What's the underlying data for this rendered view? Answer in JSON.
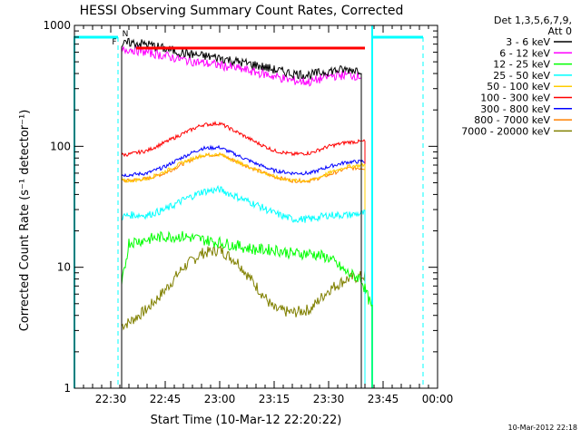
{
  "chart_data": {
    "type": "line",
    "title": "HESSI Observing Summary Count Rates, Corrected",
    "xlabel": "Start Time (10-Mar-12 22:20:22)",
    "ylabel": "Corrected Count Rate (s⁻¹ detector⁻¹)",
    "yscale": "log",
    "ylim": [
      1,
      1000
    ],
    "xlim_minutes_after_2220": [
      0,
      100
    ],
    "x_ticks": [
      {
        "t": 10,
        "label": "22:30"
      },
      {
        "t": 25,
        "label": "22:45"
      },
      {
        "t": 40,
        "label": "23:00"
      },
      {
        "t": 55,
        "label": "23:15"
      },
      {
        "t": 70,
        "label": "23:30"
      },
      {
        "t": 85,
        "label": "23:45"
      },
      {
        "t": 100,
        "label": "00:00"
      }
    ],
    "y_ticks": [
      {
        "v": 1,
        "label": "1"
      },
      {
        "v": 10,
        "label": "10"
      },
      {
        "v": 100,
        "label": "100"
      },
      {
        "v": 1000,
        "label": "1000"
      }
    ],
    "legend_header": [
      "Det 1,3,5,6,7,9,",
      "Att 0"
    ],
    "legend_placement": "right",
    "flag_labels": [
      "F",
      "N"
    ],
    "footer_stamp": "10-Mar-2012 22:18",
    "data_window_minutes": [
      13,
      80
    ],
    "series": [
      {
        "name": "3 - 6 keV",
        "color": "#000000",
        "x": [
          13,
          15,
          20,
          25,
          30,
          35,
          40,
          45,
          50,
          55,
          60,
          65,
          70,
          75,
          79
        ],
        "y": [
          680,
          720,
          700,
          640,
          590,
          560,
          540,
          500,
          470,
          430,
          400,
          390,
          420,
          430,
          430
        ]
      },
      {
        "name": "6 - 12 keV",
        "color": "#ff00ff",
        "x": [
          13,
          15,
          20,
          25,
          30,
          35,
          40,
          45,
          50,
          55,
          60,
          65,
          70,
          75,
          79
        ],
        "y": [
          620,
          640,
          600,
          560,
          520,
          490,
          470,
          440,
          410,
          380,
          350,
          340,
          380,
          390,
          380
        ]
      },
      {
        "name": "12 - 25 keV",
        "color": "#00ff00",
        "x": [
          13,
          15,
          20,
          25,
          30,
          35,
          40,
          45,
          50,
          55,
          60,
          65,
          70,
          75,
          79,
          82
        ],
        "y": [
          7,
          16,
          17,
          18,
          18,
          17,
          16,
          15,
          14,
          14,
          13,
          13,
          12,
          9,
          8,
          4.5
        ]
      },
      {
        "name": "25 - 50 keV",
        "color": "#00ffff",
        "x": [
          13,
          15,
          20,
          25,
          30,
          35,
          40,
          45,
          50,
          55,
          60,
          65,
          70,
          75,
          80
        ],
        "y": [
          26,
          27,
          27,
          30,
          36,
          42,
          44,
          38,
          33,
          28,
          25,
          25,
          27,
          27,
          28
        ]
      },
      {
        "name": "50 - 100 keV",
        "color": "#ffcc00",
        "x": [
          13,
          15,
          20,
          25,
          30,
          35,
          40,
          45,
          50,
          55,
          60,
          65,
          70,
          75,
          80
        ],
        "y": [
          52,
          52,
          54,
          62,
          74,
          84,
          86,
          74,
          64,
          56,
          52,
          52,
          60,
          68,
          70
        ]
      },
      {
        "name": "100 - 300 keV",
        "color": "#ff0000",
        "x": [
          13,
          15,
          20,
          25,
          30,
          35,
          40,
          45,
          50,
          55,
          60,
          65,
          70,
          75,
          80
        ],
        "y": [
          85,
          86,
          92,
          108,
          128,
          150,
          155,
          130,
          108,
          92,
          86,
          88,
          100,
          108,
          110
        ]
      },
      {
        "name": "300 - 800 keV",
        "color": "#0000ff",
        "x": [
          13,
          15,
          20,
          25,
          30,
          35,
          40,
          45,
          50,
          55,
          60,
          65,
          70,
          75,
          80
        ],
        "y": [
          58,
          58,
          60,
          68,
          82,
          96,
          98,
          84,
          72,
          63,
          60,
          60,
          68,
          74,
          75
        ]
      },
      {
        "name": "800 - 7000 keV",
        "color": "#ff8000",
        "x": [
          13,
          15,
          20,
          25,
          30,
          35,
          40,
          45,
          50,
          55,
          60,
          65,
          70,
          75,
          80
        ],
        "y": [
          52,
          52,
          54,
          60,
          72,
          84,
          86,
          74,
          64,
          56,
          52,
          52,
          58,
          66,
          66
        ]
      },
      {
        "name": "7000 - 20000 keV",
        "color": "#808000",
        "x": [
          13,
          15,
          20,
          25,
          30,
          35,
          40,
          45,
          50,
          55,
          60,
          65,
          70,
          75,
          80
        ],
        "y": [
          3.3,
          3.5,
          4.5,
          6.5,
          10,
          13,
          14,
          11,
          7,
          4.5,
          4.2,
          4.5,
          6.5,
          8,
          8.5
        ]
      }
    ],
    "attenuator_level": {
      "name": "attenuator/flag",
      "color": "#ff0000",
      "x": [
        17,
        80
      ],
      "y": [
        650,
        650
      ]
    }
  }
}
